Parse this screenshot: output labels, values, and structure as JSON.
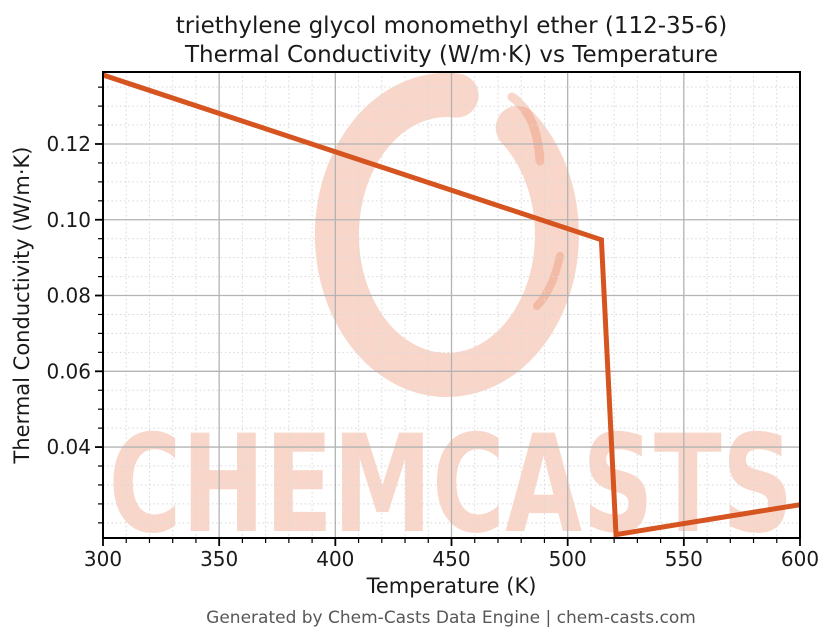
{
  "figure": {
    "title_line1": "triethylene glycol monomethyl ether (112-35-6)",
    "title_line2": "Thermal Conductivity (W/m·K) vs Temperature",
    "footer": "Generated by Chem-Casts Data Engine | chem-casts.com"
  },
  "watermark": {
    "text": "CHEMCASTS",
    "shape": "brush-ring",
    "color": "#e87a50",
    "opacity": 0.3
  },
  "axes": {
    "x_label": "Temperature (K)",
    "y_label": "Thermal Conductivity (W/m·K)",
    "x_tick_labels": [
      "300",
      "350",
      "400",
      "450",
      "500",
      "550",
      "600"
    ],
    "y_tick_labels": [
      "0.04",
      "0.06",
      "0.08",
      "0.10",
      "0.12"
    ]
  },
  "chart_data": {
    "type": "line",
    "title": "triethylene glycol monomethyl ether (112-35-6) — Thermal Conductivity (W/m·K) vs Temperature",
    "xlabel": "Temperature (K)",
    "ylabel": "Thermal Conductivity (W/m·K)",
    "xlim": [
      300,
      600
    ],
    "ylim": [
      0.016,
      0.139
    ],
    "x_major_ticks": [
      300,
      350,
      400,
      450,
      500,
      550,
      600
    ],
    "y_major_ticks": [
      0.04,
      0.06,
      0.08,
      0.1,
      0.12
    ],
    "x_minor_step": 10,
    "y_minor_step": 0.005,
    "grid": {
      "major": true,
      "minor": true
    },
    "legend": "none",
    "series": [
      {
        "name": "thermal-conductivity",
        "color": "#d5541f",
        "x": [
          300,
          514.5,
          520.8,
          600
        ],
        "y": [
          0.1382,
          0.0947,
          0.0169,
          0.0248
        ]
      }
    ]
  },
  "colors": {
    "line": "#d5541f",
    "grid_major": "#b3b3b3",
    "grid_minor": "#d9d9d9",
    "spine": "#000000",
    "tick_label": "#1a1a1a",
    "title_text": "#1a1a1a",
    "footer_text": "#575757",
    "background": "#ffffff"
  }
}
